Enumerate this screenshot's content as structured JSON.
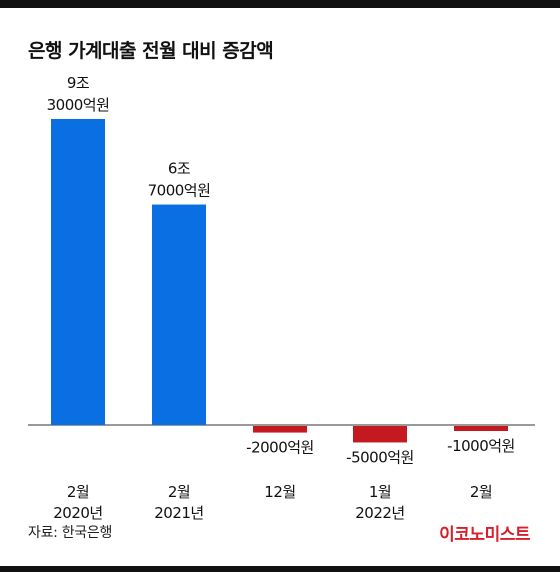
{
  "title": "은행 가계대출 전월 대비 증감액",
  "source": "자료: 한국은행",
  "brand": "이코노미스트",
  "colors": {
    "positive": "#0a6fe3",
    "negative": "#c41a1f",
    "brand": "#d91e2a",
    "axis": "#333333"
  },
  "chart_data": {
    "type": "bar",
    "unit": "억원",
    "categories": [
      [
        "2월",
        "2020년"
      ],
      [
        "2월",
        "2021년"
      ],
      [
        "12월",
        ""
      ],
      [
        "1월",
        "2022년"
      ],
      [
        "2월",
        ""
      ]
    ],
    "values": [
      93000,
      67000,
      -2000,
      -5000,
      -1000
    ],
    "data_labels": [
      [
        "9조",
        "3000억원"
      ],
      [
        "6조",
        "7000억원"
      ],
      [
        "-2000억원"
      ],
      [
        "-5000억원"
      ],
      [
        "-1000억원"
      ]
    ],
    "ylim": [
      -10000,
      100000
    ]
  }
}
